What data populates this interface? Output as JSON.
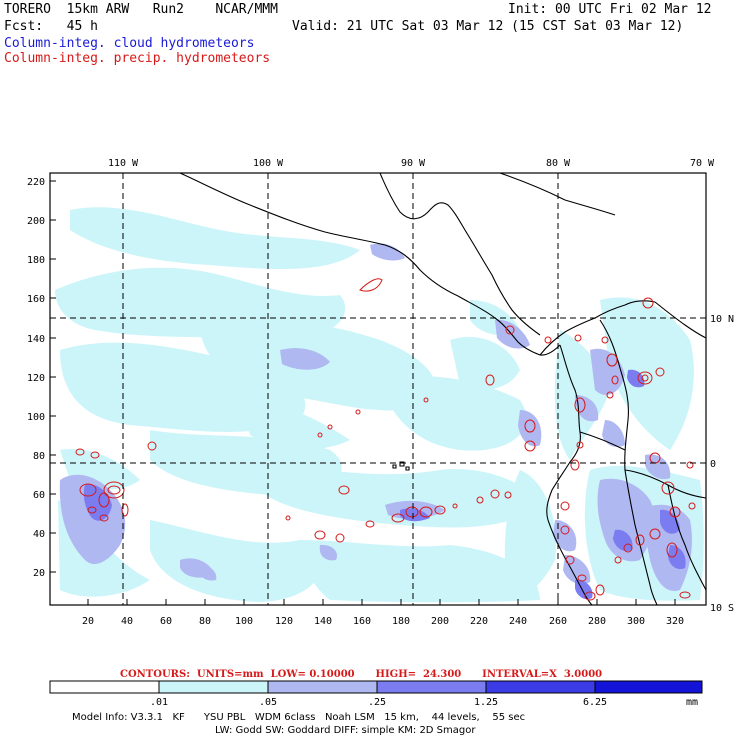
{
  "header": {
    "line1_left": "TORERO  15km ARW   Run2    NCAR/MMM",
    "line1_right": "Init: 00 UTC Fri 02 Mar 12",
    "line2_left": "Fcst:   45 h",
    "line2_right": "Valid: 21 UTC Sat 03 Mar 12 (15 CST Sat 03 Mar 12)",
    "legend_cloud": "Column-integ. cloud hydrometeors",
    "legend_precip": "Column-integ. precip. hydrometeors",
    "legend_cloud_color": "#1a1ad8",
    "legend_precip_color": "#d61a1a"
  },
  "map": {
    "lon_labels": [
      "110 W",
      "100 W",
      "90 W",
      "80 W",
      "70 W"
    ],
    "lat_labels": [
      "10 N",
      "0",
      "10 S"
    ],
    "y_ticks": [
      "220",
      "200",
      "180",
      "160",
      "140",
      "120",
      "100",
      "80",
      "60",
      "40",
      "20"
    ],
    "x_ticks": [
      "20",
      "40",
      "60",
      "80",
      "100",
      "120",
      "140",
      "160",
      "180",
      "200",
      "220",
      "240",
      "260",
      "280",
      "300",
      "320"
    ]
  },
  "contours": {
    "text": "CONTOURS:  UNITS=mm  LOW= 0.10000      HIGH=  24.300      INTERVAL=X  3.0000"
  },
  "colorbar": {
    "ticks": [
      ".01",
      ".05",
      ".25",
      "1.25",
      "6.25"
    ],
    "unit": "mm",
    "colors": [
      "#ffffff",
      "#ccf5fa",
      "#b0b8f2",
      "#7a7cf0",
      "#3c3ce6",
      "#1414d8"
    ]
  },
  "model_info": {
    "line1": "Model Info: V3.3.1   KF      YSU PBL   WDM 6class   Noah LSM   15 km,    44 levels,    55 sec",
    "line2": "LW: Godd SW: Goddard DIFF: simple KM: 2D Smagor"
  }
}
